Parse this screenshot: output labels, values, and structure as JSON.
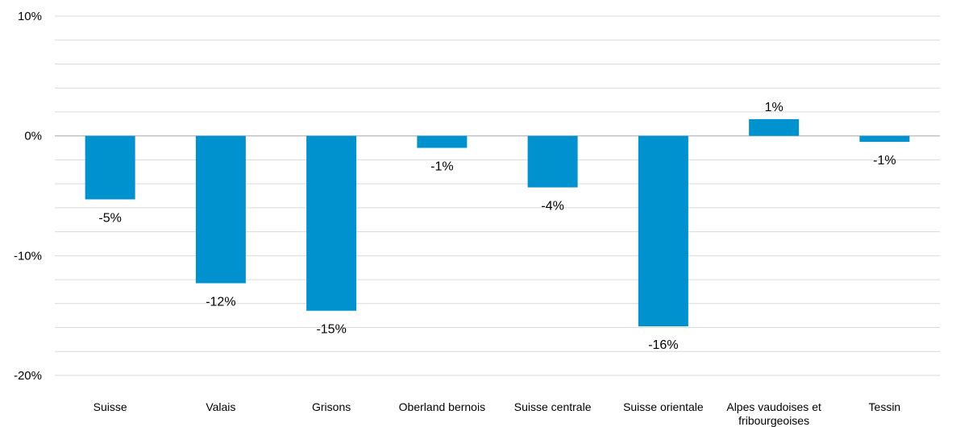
{
  "chart_data": {
    "type": "bar",
    "categories": [
      "Suisse",
      "Valais",
      "Grisons",
      "Oberland bernois",
      "Suisse centrale",
      "Suisse orientale",
      [
        "Alpes vaudoises et",
        "fribourgeoises"
      ],
      "Tessin"
    ],
    "values": [
      -5.3,
      -12.3,
      -14.6,
      -1.0,
      -4.3,
      -15.9,
      1.4,
      -0.5
    ],
    "data_labels": [
      "-5%",
      "-12%",
      "-15%",
      "-1%",
      "-4%",
      "-16%",
      "1%",
      "-1%"
    ],
    "ylim": [
      -20,
      10
    ],
    "yticks": [
      10,
      0,
      -10,
      -20
    ],
    "ytick_labels": [
      "10%",
      "0%",
      "-10%",
      "-20%"
    ],
    "minor_grid_step": 2,
    "grid": true,
    "colors": {
      "bar": "#0091cf",
      "grid": "#d9d9d9",
      "zero_line": "#c0c0c0"
    }
  }
}
